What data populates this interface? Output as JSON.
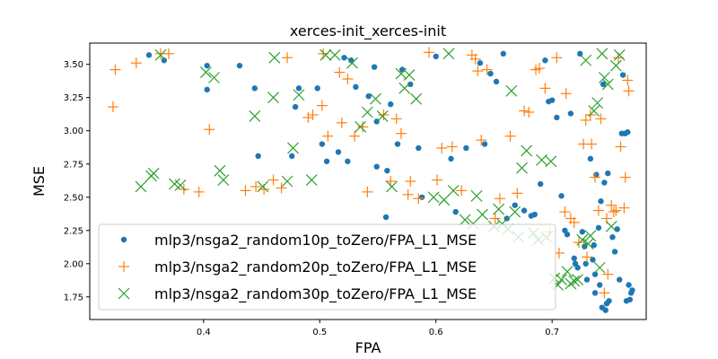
{
  "chart_data": {
    "type": "scatter",
    "title": "xerces-init_xerces-init",
    "xlabel": "FPA",
    "ylabel": "MSE",
    "xlim": [
      0.302,
      0.781
    ],
    "ylim": [
      1.58,
      3.66
    ],
    "xticks": [
      "0.4",
      "0.5",
      "0.6",
      "0.7"
    ],
    "xtick_values": [
      0.4,
      0.5,
      0.6,
      0.7
    ],
    "yticks": [
      "1.75",
      "2.00",
      "2.25",
      "2.50",
      "2.75",
      "3.00",
      "3.25",
      "3.50"
    ],
    "ytick_values": [
      1.75,
      2.0,
      2.25,
      2.5,
      2.75,
      3.0,
      3.25,
      3.5
    ],
    "grid": false,
    "legend_position": "lower-left",
    "series": [
      {
        "name": "mlp3/nsga2_random10p_toZero/FPA_L1_MSE",
        "color": "#1f77b4",
        "marker": "circle",
        "points": [
          [
            0.353,
            3.57
          ],
          [
            0.366,
            3.53
          ],
          [
            0.403,
            3.49
          ],
          [
            0.403,
            3.31
          ],
          [
            0.431,
            3.49
          ],
          [
            0.444,
            3.32
          ],
          [
            0.447,
            2.81
          ],
          [
            0.476,
            2.81
          ],
          [
            0.479,
            3.18
          ],
          [
            0.482,
            3.32
          ],
          [
            0.498,
            3.32
          ],
          [
            0.502,
            2.9
          ],
          [
            0.506,
            2.77
          ],
          [
            0.516,
            2.84
          ],
          [
            0.521,
            3.55
          ],
          [
            0.524,
            2.77
          ],
          [
            0.527,
            3.53
          ],
          [
            0.531,
            3.33
          ],
          [
            0.542,
            3.26
          ],
          [
            0.547,
            3.48
          ],
          [
            0.549,
            3.07
          ],
          [
            0.549,
            2.73
          ],
          [
            0.557,
            2.35
          ],
          [
            0.558,
            2.7
          ],
          [
            0.561,
            3.2
          ],
          [
            0.567,
            2.9
          ],
          [
            0.571,
            3.46
          ],
          [
            0.578,
            3.35
          ],
          [
            0.585,
            2.87
          ],
          [
            0.588,
            2.5
          ],
          [
            0.6,
            3.56
          ],
          [
            0.613,
            2.79
          ],
          [
            0.617,
            2.39
          ],
          [
            0.626,
            2.87
          ],
          [
            0.638,
            3.51
          ],
          [
            0.642,
            2.9
          ],
          [
            0.647,
            3.43
          ],
          [
            0.652,
            3.37
          ],
          [
            0.658,
            3.58
          ],
          [
            0.661,
            2.34
          ],
          [
            0.668,
            2.44
          ],
          [
            0.676,
            2.4
          ],
          [
            0.682,
            2.36
          ],
          [
            0.685,
            2.37
          ],
          [
            0.69,
            2.6
          ],
          [
            0.694,
            3.53
          ],
          [
            0.697,
            3.22
          ],
          [
            0.7,
            3.23
          ],
          [
            0.704,
            3.1
          ],
          [
            0.708,
            2.51
          ],
          [
            0.711,
            2.25
          ],
          [
            0.713,
            2.22
          ],
          [
            0.716,
            3.13
          ],
          [
            0.719,
            2.04
          ],
          [
            0.72,
            2.0
          ],
          [
            0.722,
            1.97
          ],
          [
            0.724,
            3.58
          ],
          [
            0.726,
            2.24
          ],
          [
            0.728,
            2.13
          ],
          [
            0.729,
            2.0
          ],
          [
            0.73,
            1.88
          ],
          [
            0.733,
            2.79
          ],
          [
            0.735,
            2.03
          ],
          [
            0.736,
            2.14
          ],
          [
            0.737,
            1.92
          ],
          [
            0.737,
            1.78
          ],
          [
            0.738,
            2.67
          ],
          [
            0.74,
            2.27
          ],
          [
            0.741,
            1.84
          ],
          [
            0.742,
            2.47
          ],
          [
            0.743,
            1.67
          ],
          [
            0.744,
            3.35
          ],
          [
            0.745,
            2.61
          ],
          [
            0.746,
            1.65
          ],
          [
            0.747,
            1.7
          ],
          [
            0.748,
            2.68
          ],
          [
            0.749,
            1.72
          ],
          [
            0.752,
            2.2
          ],
          [
            0.754,
            2.09
          ],
          [
            0.756,
            2.26
          ],
          [
            0.758,
            1.88
          ],
          [
            0.76,
            2.98
          ],
          [
            0.761,
            3.42
          ],
          [
            0.763,
            2.98
          ],
          [
            0.764,
            1.72
          ],
          [
            0.765,
            2.99
          ],
          [
            0.766,
            1.84
          ],
          [
            0.767,
            1.73
          ],
          [
            0.768,
            1.78
          ],
          [
            0.769,
            1.8
          ]
        ]
      },
      {
        "name": "mlp3/nsga2_random20p_toZero/FPA_L1_MSE",
        "color": "#ff7f0e",
        "marker": "plus",
        "points": [
          [
            0.322,
            3.18
          ],
          [
            0.324,
            3.46
          ],
          [
            0.342,
            3.51
          ],
          [
            0.363,
            3.58
          ],
          [
            0.37,
            3.58
          ],
          [
            0.383,
            2.56
          ],
          [
            0.396,
            2.54
          ],
          [
            0.405,
            3.01
          ],
          [
            0.436,
            2.55
          ],
          [
            0.445,
            2.58
          ],
          [
            0.452,
            2.56
          ],
          [
            0.46,
            2.63
          ],
          [
            0.467,
            2.57
          ],
          [
            0.472,
            3.55
          ],
          [
            0.49,
            3.1
          ],
          [
            0.494,
            3.12
          ],
          [
            0.502,
            3.19
          ],
          [
            0.503,
            3.58
          ],
          [
            0.507,
            2.96
          ],
          [
            0.517,
            3.44
          ],
          [
            0.519,
            3.06
          ],
          [
            0.524,
            3.39
          ],
          [
            0.53,
            2.96
          ],
          [
            0.537,
            3.03
          ],
          [
            0.541,
            2.54
          ],
          [
            0.555,
            3.12
          ],
          [
            0.561,
            2.62
          ],
          [
            0.566,
            3.09
          ],
          [
            0.57,
            2.98
          ],
          [
            0.576,
            2.52
          ],
          [
            0.578,
            2.62
          ],
          [
            0.585,
            2.49
          ],
          [
            0.594,
            3.59
          ],
          [
            0.601,
            2.63
          ],
          [
            0.605,
            2.87
          ],
          [
            0.614,
            2.88
          ],
          [
            0.622,
            2.55
          ],
          [
            0.631,
            3.57
          ],
          [
            0.634,
            3.54
          ],
          [
            0.636,
            3.45
          ],
          [
            0.639,
            2.93
          ],
          [
            0.644,
            3.46
          ],
          [
            0.651,
            2.34
          ],
          [
            0.655,
            2.49
          ],
          [
            0.664,
            2.96
          ],
          [
            0.67,
            2.53
          ],
          [
            0.676,
            3.15
          ],
          [
            0.68,
            3.14
          ],
          [
            0.686,
            3.46
          ],
          [
            0.689,
            3.47
          ],
          [
            0.694,
            3.32
          ],
          [
            0.698,
            2.24
          ],
          [
            0.704,
            3.55
          ],
          [
            0.706,
            2.08
          ],
          [
            0.711,
            2.39
          ],
          [
            0.712,
            3.28
          ],
          [
            0.716,
            2.34
          ],
          [
            0.719,
            2.31
          ],
          [
            0.723,
            2.16
          ],
          [
            0.727,
            2.9
          ],
          [
            0.729,
            3.08
          ],
          [
            0.73,
            2.05
          ],
          [
            0.733,
            3.12
          ],
          [
            0.734,
            2.9
          ],
          [
            0.737,
            2.65
          ],
          [
            0.74,
            2.4
          ],
          [
            0.742,
            3.09
          ],
          [
            0.745,
            1.78
          ],
          [
            0.747,
            2.34
          ],
          [
            0.748,
            1.92
          ],
          [
            0.751,
            2.44
          ],
          [
            0.753,
            2.39
          ],
          [
            0.755,
            2.4
          ],
          [
            0.757,
            3.55
          ],
          [
            0.759,
            2.88
          ],
          [
            0.762,
            2.42
          ],
          [
            0.763,
            2.65
          ],
          [
            0.765,
            3.38
          ],
          [
            0.766,
            3.3
          ]
        ]
      },
      {
        "name": "mlp3/nsga2_random30p_toZero/FPA_L1_MSE",
        "color": "#2ca02c",
        "marker": "x",
        "points": [
          [
            0.346,
            2.58
          ],
          [
            0.355,
            2.66
          ],
          [
            0.357,
            2.68
          ],
          [
            0.363,
            3.57
          ],
          [
            0.375,
            2.6
          ],
          [
            0.38,
            2.59
          ],
          [
            0.402,
            3.44
          ],
          [
            0.409,
            3.4
          ],
          [
            0.414,
            2.7
          ],
          [
            0.417,
            2.63
          ],
          [
            0.444,
            3.11
          ],
          [
            0.451,
            2.58
          ],
          [
            0.46,
            3.25
          ],
          [
            0.461,
            3.55
          ],
          [
            0.472,
            2.62
          ],
          [
            0.477,
            2.87
          ],
          [
            0.482,
            3.27
          ],
          [
            0.493,
            2.63
          ],
          [
            0.505,
            3.57
          ],
          [
            0.513,
            3.57
          ],
          [
            0.528,
            3.51
          ],
          [
            0.535,
            3.03
          ],
          [
            0.541,
            3.14
          ],
          [
            0.548,
            3.24
          ],
          [
            0.554,
            3.11
          ],
          [
            0.562,
            2.58
          ],
          [
            0.57,
            3.43
          ],
          [
            0.573,
            3.32
          ],
          [
            0.577,
            3.42
          ],
          [
            0.583,
            3.24
          ],
          [
            0.598,
            2.5
          ],
          [
            0.607,
            2.48
          ],
          [
            0.611,
            3.58
          ],
          [
            0.615,
            2.55
          ],
          [
            0.625,
            2.33
          ],
          [
            0.632,
            2.3
          ],
          [
            0.635,
            2.51
          ],
          [
            0.64,
            2.37
          ],
          [
            0.65,
            2.28
          ],
          [
            0.654,
            2.41
          ],
          [
            0.657,
            2.3
          ],
          [
            0.662,
            2.26
          ],
          [
            0.665,
            3.3
          ],
          [
            0.668,
            2.39
          ],
          [
            0.671,
            2.2
          ],
          [
            0.674,
            2.72
          ],
          [
            0.678,
            2.85
          ],
          [
            0.684,
            2.23
          ],
          [
            0.688,
            2.18
          ],
          [
            0.691,
            2.78
          ],
          [
            0.695,
            2.2
          ],
          [
            0.699,
            2.77
          ],
          [
            0.702,
            1.89
          ],
          [
            0.705,
            1.84
          ],
          [
            0.708,
            1.88
          ],
          [
            0.713,
            1.94
          ],
          [
            0.716,
            1.85
          ],
          [
            0.719,
            1.87
          ],
          [
            0.722,
            1.88
          ],
          [
            0.726,
            2.18
          ],
          [
            0.729,
            3.53
          ],
          [
            0.731,
            2.15
          ],
          [
            0.733,
            2.21
          ],
          [
            0.736,
            3.15
          ],
          [
            0.739,
            3.21
          ],
          [
            0.741,
            1.97
          ],
          [
            0.743,
            3.58
          ],
          [
            0.745,
            3.4
          ],
          [
            0.748,
            3.35
          ],
          [
            0.751,
            2.28
          ],
          [
            0.755,
            3.49
          ],
          [
            0.758,
            3.57
          ]
        ]
      }
    ]
  }
}
